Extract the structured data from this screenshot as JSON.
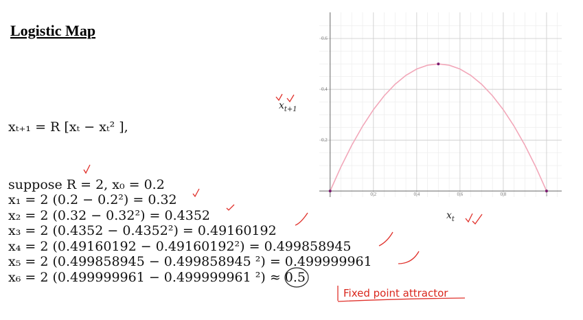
{
  "title": "Logistic Map",
  "equations": [
    "xₜ₊₁ = R [xₜ − xₜ² ],",
    "suppose R = 2, x₀ = 0.2",
    "x₁ = 2 (0.2 − 0.2²) = 0.32",
    "x₂ = 2 (0.32 − 0.32²) = 0.4352",
    "x₃ = 2 (0.4352 − 0.4352²) = 0.49160192",
    "x₄ = 2 (0.49160192 − 0.49160192²) = 0.499858945",
    "x₅ = 2 (0.499858945  − 0.499858945 ²) = 0.499999961",
    "x₆ = 2 (0.499999961  − 0.499999961 ²) ≈ 0.5"
  ],
  "annotation": "Fixed point attractor",
  "chart_data": {
    "type": "line",
    "x": [
      0,
      0.05,
      0.1,
      0.15,
      0.2,
      0.25,
      0.3,
      0.35,
      0.4,
      0.45,
      0.5,
      0.55,
      0.6,
      0.65,
      0.7,
      0.75,
      0.8,
      0.85,
      0.9,
      0.95,
      1
    ],
    "series": [
      {
        "color": "#f2a7b9",
        "values": [
          0,
          0.095,
          0.18,
          0.255,
          0.32,
          0.375,
          0.42,
          0.455,
          0.48,
          0.495,
          0.5,
          0.495,
          0.48,
          0.455,
          0.42,
          0.375,
          0.32,
          0.255,
          0.18,
          0.095,
          0
        ]
      },
      {
        "color": "#7a1a6e",
        "style": "markers",
        "x": [
          0,
          0.5,
          1
        ],
        "values": [
          0,
          0.5,
          0
        ]
      }
    ],
    "xlim": [
      -0.05,
      1.07
    ],
    "ylim": [
      -0.024,
      0.703
    ],
    "xticks": [
      0.2,
      0.4,
      0.6,
      0.8,
      1
    ],
    "yticks": [
      0.2,
      0.4,
      0.6
    ],
    "xminor": [
      0,
      0.05,
      0.1,
      0.15,
      0.25,
      0.3,
      0.35,
      0.45,
      0.5,
      0.55,
      0.65,
      0.7,
      0.75,
      0.85,
      0.9,
      0.95,
      1.05
    ],
    "yminor": [
      0.05,
      0.1,
      0.15,
      0.25,
      0.3,
      0.35,
      0.45,
      0.5,
      0.55,
      0.65
    ],
    "x_label": {
      "base": "x",
      "sub": "t"
    },
    "y_label": {
      "base": "x",
      "sub": "t+1"
    },
    "grid": true
  }
}
